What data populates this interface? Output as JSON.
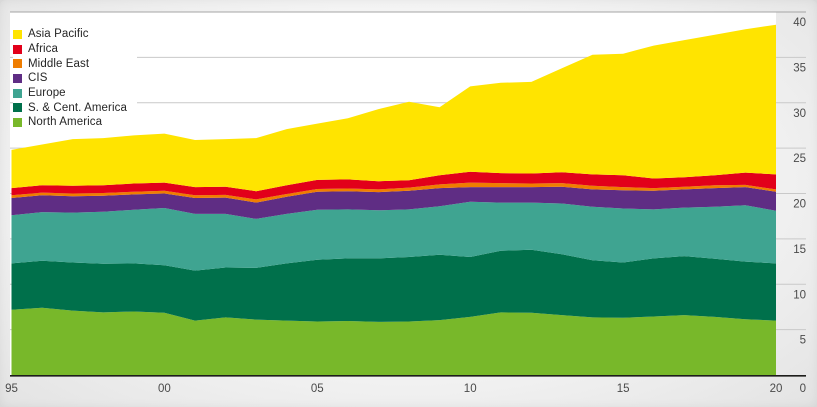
{
  "page": {
    "background": "#f0f0f0",
    "plot_background": "#ffffff"
  },
  "colors": {
    "grid_line": "#c9c9c9",
    "top_rule": "#a5a5a5",
    "axis_line": "#1d1d1b",
    "tick_text": "#4a4a4a",
    "legend_text": "#262626"
  },
  "legend": {
    "position": "top-left",
    "items": [
      {
        "label": "Asia Pacific",
        "color": "#ffe400"
      },
      {
        "label": "Africa",
        "color": "#e2001a"
      },
      {
        "label": "Middle East",
        "color": "#ef7d00"
      },
      {
        "label": "CIS",
        "color": "#5f2d84"
      },
      {
        "label": "Europe",
        "color": "#3fa491"
      },
      {
        "label": "S. & Cent. America",
        "color": "#00704b"
      },
      {
        "label": "North America",
        "color": "#78b82a"
      }
    ]
  },
  "axes": {
    "y": {
      "side": "right",
      "range": [
        0,
        40
      ],
      "tick_labels": [
        "40",
        "35",
        "30",
        "25",
        "20",
        "15",
        "10",
        "5",
        "0"
      ],
      "tick_values": [
        40,
        35,
        30,
        25,
        20,
        15,
        10,
        5,
        0
      ]
    },
    "x": {
      "tick_labels": [
        "95",
        "00",
        "05",
        "10",
        "15",
        "20"
      ],
      "tick_years": [
        1995,
        2000,
        2005,
        2010,
        2015,
        2020
      ]
    }
  },
  "chart_data": {
    "type": "area",
    "stacked": true,
    "grid": true,
    "legend_position": "top-left",
    "x": [
      1995,
      1996,
      1997,
      1998,
      1999,
      2000,
      2001,
      2002,
      2003,
      2004,
      2005,
      2006,
      2007,
      2008,
      2009,
      2010,
      2011,
      2012,
      2013,
      2014,
      2015,
      2016,
      2017,
      2018,
      2019,
      2020
    ],
    "xlim": [
      1995,
      2020
    ],
    "ylim": [
      0,
      40
    ],
    "series": [
      {
        "name": "north_america",
        "label": "North America",
        "color": "#78b82a",
        "values": [
          7.2,
          7.4,
          7.1,
          6.9,
          7.0,
          6.85,
          6.0,
          6.35,
          6.1,
          6.0,
          5.9,
          5.95,
          5.85,
          5.9,
          6.05,
          6.4,
          6.9,
          6.85,
          6.6,
          6.35,
          6.3,
          6.45,
          6.6,
          6.4,
          6.15,
          6.0
        ]
      },
      {
        "name": "s_cent_america",
        "label": "S. & Cent. America",
        "color": "#00704b",
        "values": [
          5.1,
          5.2,
          5.3,
          5.35,
          5.3,
          5.25,
          5.5,
          5.5,
          5.7,
          6.3,
          6.8,
          6.9,
          7.0,
          7.1,
          7.2,
          6.6,
          6.8,
          6.95,
          6.7,
          6.3,
          6.1,
          6.4,
          6.5,
          6.4,
          6.35,
          6.3
        ]
      },
      {
        "name": "europe",
        "label": "Europe",
        "color": "#3fa491",
        "values": [
          5.3,
          5.35,
          5.5,
          5.75,
          5.9,
          6.3,
          6.25,
          5.9,
          5.4,
          5.45,
          5.5,
          5.4,
          5.3,
          5.25,
          5.35,
          6.1,
          5.3,
          5.2,
          5.6,
          5.9,
          5.95,
          5.4,
          5.35,
          5.75,
          6.2,
          5.8
        ]
      },
      {
        "name": "cis",
        "label": "CIS",
        "color": "#5f2d84",
        "values": [
          1.9,
          1.85,
          1.8,
          1.75,
          1.7,
          1.6,
          1.75,
          1.8,
          1.8,
          1.9,
          2.0,
          2.0,
          2.0,
          2.05,
          2.0,
          1.6,
          1.7,
          1.7,
          1.85,
          1.9,
          2.0,
          2.05,
          2.0,
          2.05,
          2.0,
          2.1
        ]
      },
      {
        "name": "middle_east",
        "label": "Middle East",
        "color": "#ef7d00",
        "values": [
          0.3,
          0.3,
          0.3,
          0.3,
          0.3,
          0.3,
          0.3,
          0.3,
          0.35,
          0.3,
          0.3,
          0.3,
          0.3,
          0.35,
          0.4,
          0.5,
          0.45,
          0.4,
          0.4,
          0.4,
          0.35,
          0.3,
          0.3,
          0.3,
          0.25,
          0.25
        ]
      },
      {
        "name": "africa",
        "label": "Africa",
        "color": "#e2001a",
        "values": [
          0.8,
          0.8,
          0.85,
          0.85,
          0.9,
          0.9,
          0.9,
          0.9,
          0.9,
          0.95,
          1.0,
          1.0,
          0.9,
          0.8,
          1.0,
          1.2,
          1.1,
          1.1,
          1.2,
          1.25,
          1.3,
          1.05,
          1.05,
          1.1,
          1.35,
          1.65
        ]
      },
      {
        "name": "asia_pacific",
        "label": "Asia Pacific",
        "color": "#ffe400",
        "values": [
          4.2,
          4.5,
          5.15,
          5.2,
          5.3,
          5.4,
          5.2,
          5.25,
          5.85,
          6.2,
          6.2,
          6.75,
          7.95,
          8.65,
          7.5,
          9.4,
          9.95,
          10.1,
          11.45,
          13.2,
          13.4,
          14.65,
          15.1,
          15.5,
          15.8,
          16.5
        ]
      }
    ]
  }
}
